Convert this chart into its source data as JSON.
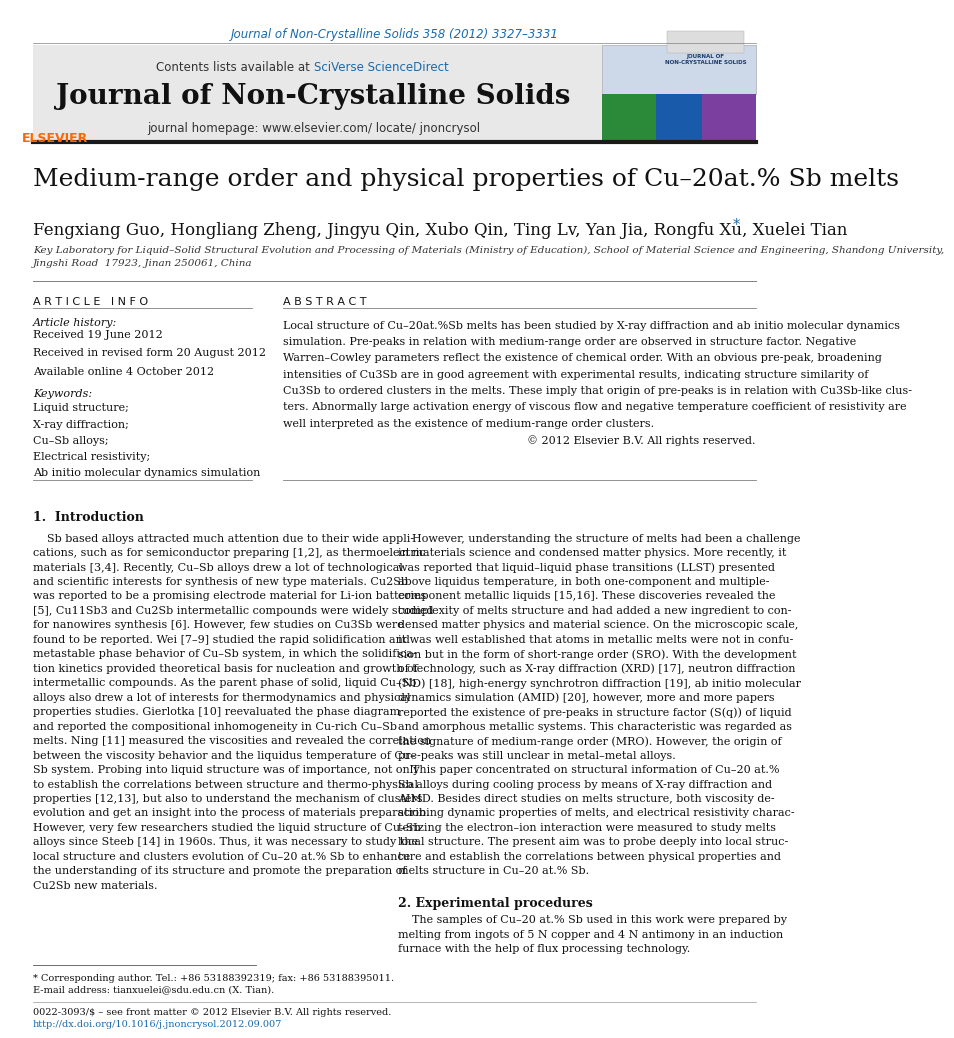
{
  "page_width": 9.92,
  "page_height": 13.23,
  "bg_color": "#ffffff",
  "journal_ref_text": "Journal of Non-Crystalline Solids 358 (2012) 3327–3331",
  "journal_ref_color": "#1a6aab",
  "journal_ref_fontsize": 8.5,
  "header_bg_color": "#e8e8e8",
  "journal_name": "Journal of Non-Crystalline Solids",
  "journal_name_fontsize": 20,
  "homepage_text": "journal homepage: www.elsevier.com/ locate/ jnoncrysol",
  "homepage_fontsize": 8.5,
  "contents_text": "Contents lists available at ",
  "sciverse_text": "SciVerse ScienceDirect",
  "sciverse_color": "#1a6aab",
  "contents_fontsize": 8.5,
  "title": "Medium-range order and physical properties of Cu–20at.% Sb melts",
  "title_fontsize": 18,
  "authors": "Fengxiang Guo, Hongliang Zheng, Jingyu Qin, Xubo Qin, Ting Lv, Yan Jia, Rongfu Xu, Xuelei Tian",
  "authors_fontsize": 12,
  "affiliation": "Key Laboratory for Liquid–Solid Structural Evolution and Processing of Materials (Ministry of Education), School of Material Science and Engineering, Shandong University,\nJingshi Road  17923, Jinan 250061, China",
  "affiliation_fontsize": 7.5,
  "article_info_title": "A R T I C L E   I N F O",
  "abstract_title": "A B S T R A C T",
  "section_title_fontsize": 8,
  "article_history_label": "Article history:",
  "received1": "Received 19 June 2012",
  "received2": "Received in revised form 20 August 2012",
  "available": "Available online 4 October 2012",
  "keywords_label": "Keywords:",
  "keywords": [
    "Liquid structure;",
    "X-ray diffraction;",
    "Cu–Sb alloys;",
    "Electrical resistivity;",
    "Ab initio molecular dynamics simulation"
  ],
  "abstract_fontsize": 8.0,
  "intro_title": "1.  Introduction",
  "section2_title": "2. Experimental procedures",
  "footer_text1": "* Corresponding author. Tel.: +86 53188392319; fax: +86 53188395011.",
  "footer_text2": "E-mail address: tianxuelei@sdu.edu.cn (X. Tian).",
  "footer_text3": "0022-3093/$ – see front matter © 2012 Elsevier B.V. All rights reserved.",
  "footer_text4": "http://dx.doi.org/10.1016/j.jnoncrysol.2012.09.007",
  "footer_color": "#1a6aab",
  "body_fontsize": 8.5,
  "intro_fontsize": 8.5,
  "elsevier_color": "#ff6600",
  "thick_line_color": "#1a1a1a",
  "thin_line_color": "#808080",
  "abstract_lines": [
    "Local structure of Cu–20at.%Sb melts has been studied by X-ray diffraction and ab initio molecular dynamics",
    "simulation. Pre-peaks in relation with medium-range order are observed in structure factor. Negative",
    "Warren–Cowley parameters reflect the existence of chemical order. With an obvious pre-peak, broadening",
    "intensities of Cu3Sb are in good agreement with experimental results, indicating structure similarity of",
    "Cu3Sb to ordered clusters in the melts. These imply that origin of pre-peaks is in relation with Cu3Sb-like clus-",
    "ters. Abnormally large activation energy of viscous flow and negative temperature coefficient of resistivity are",
    "well interpreted as the existence of medium-range order clusters.",
    "© 2012 Elsevier B.V. All rights reserved."
  ],
  "left_col_lines": [
    "    Sb based alloys attracted much attention due to their wide appli-",
    "cations, such as for semiconductor preparing [1,2], as thermoelectric",
    "materials [3,4]. Recently, Cu–Sb alloys drew a lot of technological",
    "and scientific interests for synthesis of new type materials. Cu2Sb",
    "was reported to be a promising electrode material for Li-ion batteries",
    "[5], Cu11Sb3 and Cu2Sb intermetallic compounds were widely studied",
    "for nanowires synthesis [6]. However, few studies on Cu3Sb were",
    "found to be reported. Wei [7–9] studied the rapid solidification and",
    "metastable phase behavior of Cu–Sb system, in which the solidifica-",
    "tion kinetics provided theoretical basis for nucleation and growth of",
    "intermetallic compounds. As the parent phase of solid, liquid Cu–Sb",
    "alloys also drew a lot of interests for thermodynamics and physical",
    "properties studies. Gierlotka [10] reevaluated the phase diagram",
    "and reported the compositional inhomogeneity in Cu-rich Cu–Sb",
    "melts. Ning [11] measured the viscosities and revealed the correlation",
    "between the viscosity behavior and the liquidus temperature of Cu–",
    "Sb system. Probing into liquid structure was of importance, not only",
    "to establish the correlations between structure and thermo-physical",
    "properties [12,13], but also to understand the mechanism of clusters",
    "evolution and get an insight into the process of materials preparation.",
    "However, very few researchers studied the liquid structure of Cu–Sb",
    "alloys since Steeb [14] in 1960s. Thus, it was necessary to study the",
    "local structure and clusters evolution of Cu–20 at.% Sb to enhance",
    "the understanding of its structure and promote the preparation of",
    "Cu2Sb new materials."
  ],
  "right_col_lines": [
    "    However, understanding the structure of melts had been a challenge",
    "in materials science and condensed matter physics. More recently, it",
    "was reported that liquid–liquid phase transitions (LLST) presented",
    "above liquidus temperature, in both one-component and multiple-",
    "component metallic liquids [15,16]. These discoveries revealed the",
    "complexity of melts structure and had added a new ingredient to con-",
    "densed matter physics and material science. On the microscopic scale,",
    "it was well established that atoms in metallic melts were not in confu-",
    "sion but in the form of short-range order (SRO). With the development",
    "of technology, such as X-ray diffraction (XRD) [17], neutron diffraction",
    "(ND) [18], high-energy synchrotron diffraction [19], ab initio molecular",
    "dynamics simulation (AMID) [20], however, more and more papers",
    "reported the existence of pre-peaks in structure factor (S(q)) of liquid",
    "and amorphous metallic systems. This characteristic was regarded as",
    "the signature of medium-range order (MRO). However, the origin of",
    "pre-peaks was still unclear in metal–metal alloys.",
    "    This paper concentrated on structural information of Cu–20 at.%",
    "Sb alloys during cooling process by means of X-ray diffraction and",
    "AIMD. Besides direct studies on melts structure, both viscosity de-",
    "scribing dynamic properties of melts, and electrical resistivity charac-",
    "terizing the electron–ion interaction were measured to study melts",
    "local structure. The present aim was to probe deeply into local struc-",
    "ture and establish the correlations between physical properties and",
    "melts structure in Cu–20 at.% Sb."
  ],
  "sec2_lines": [
    "    The samples of Cu–20 at.% Sb used in this work were prepared by",
    "melting from ingots of 5 N copper and 4 N antimony in an induction",
    "furnace with the help of flux processing technology."
  ]
}
